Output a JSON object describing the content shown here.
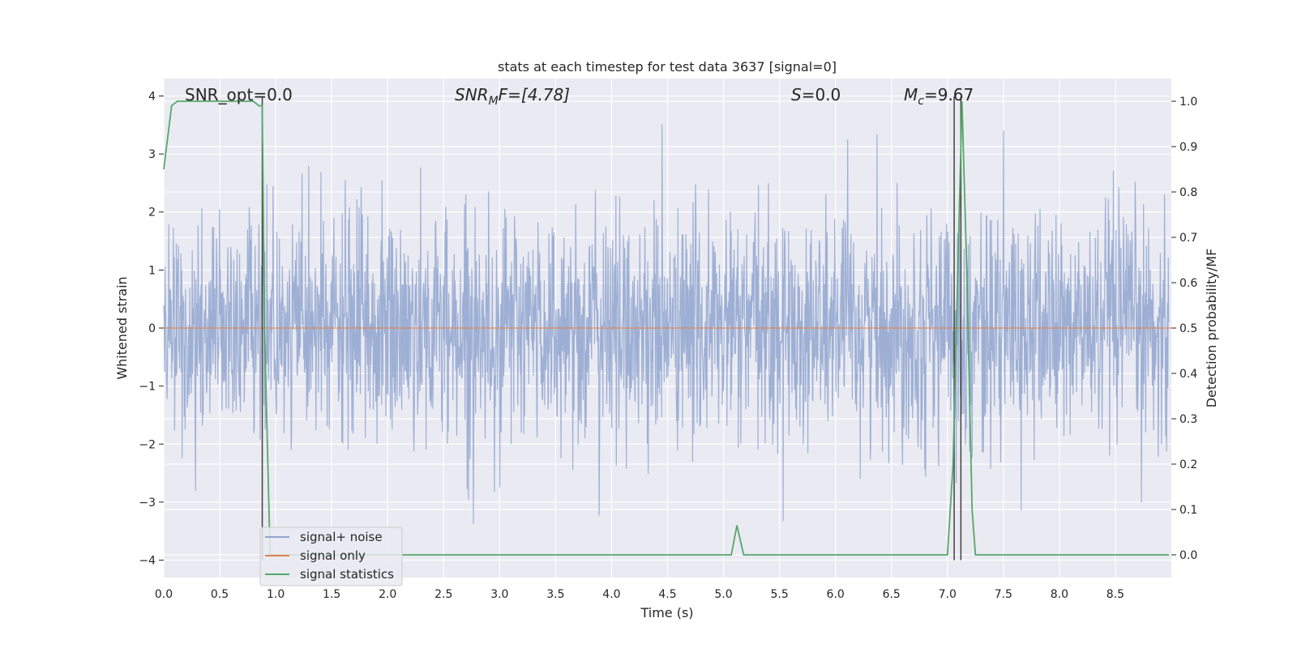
{
  "chart_data": {
    "type": "line",
    "title": "stats at each timestep for test data 3637 [signal=0]",
    "xlabel": "Time (s)",
    "ylabel": "Whitened strain",
    "ylabel_right": "Detection probability/MF",
    "xlim": [
      0.0,
      9.0
    ],
    "ylim": [
      -4.3,
      4.3
    ],
    "ylim_right": [
      -0.05,
      1.05
    ],
    "x_ticks": [
      0.0,
      0.5,
      1.0,
      1.5,
      2.0,
      2.5,
      3.0,
      3.5,
      4.0,
      4.5,
      5.0,
      5.5,
      6.0,
      6.5,
      7.0,
      7.5,
      8.0,
      8.5
    ],
    "x_tick_labels": [
      "0.0",
      "0.5",
      "1.0",
      "1.5",
      "2.0",
      "2.5",
      "3.0",
      "3.5",
      "4.0",
      "4.5",
      "5.0",
      "5.5",
      "6.0",
      "6.5",
      "7.0",
      "7.5",
      "8.0",
      "8.5"
    ],
    "y_ticks": [
      4,
      3,
      2,
      1,
      0,
      -1,
      -2,
      -3,
      -4
    ],
    "y_tick_labels": [
      "4",
      "3",
      "2",
      "1",
      "0",
      "−1",
      "−2",
      "−3",
      "−4"
    ],
    "y_right_ticks": [
      1.0,
      0.9,
      0.8,
      0.7,
      0.6,
      0.5,
      0.4,
      0.3,
      0.2,
      0.1,
      0.0
    ],
    "y_right_tick_labels": [
      "1.0",
      "0.9",
      "0.8",
      "0.7",
      "0.6",
      "0.5",
      "0.4",
      "0.3",
      "0.2",
      "0.1",
      "0.0"
    ],
    "grid": true,
    "legend_position": "lower-left",
    "annotations": {
      "snr_opt": "SNR_opt=0.0",
      "snr_mf_prefix": "SNR",
      "snr_mf_sub": "M",
      "snr_mf_suffix": "F=[4.78]",
      "s_prefix": "S",
      "s_suffix": "=0.0",
      "mc_prefix": "M",
      "mc_sub": "c",
      "mc_suffix": "=9.67"
    },
    "series": [
      {
        "name": "signal+ noise",
        "color": "#8fa5cf",
        "axis": "left",
        "kind": "whitened noise, approx. within ±2 with spikes to about ±3.9",
        "amplitude_sigma": 1.0
      },
      {
        "name": "signal only",
        "color": "#dd8452",
        "axis": "left",
        "kind": "flat",
        "value": 0.0
      },
      {
        "name": "signal statistics",
        "color": "#55a868",
        "axis": "right",
        "x": [
          0.0,
          0.07,
          0.12,
          0.2,
          0.4,
          0.6,
          0.8,
          0.85,
          0.88,
          0.9,
          0.95,
          1.0,
          1.5,
          2.0,
          3.0,
          4.0,
          4.5,
          5.0,
          5.07,
          5.12,
          5.18,
          5.25,
          6.0,
          6.5,
          7.0,
          7.05,
          7.1,
          7.13,
          7.17,
          7.22,
          7.25,
          7.5,
          8.0,
          8.5,
          8.98
        ],
        "values": [
          0.85,
          0.99,
          1.0,
          1.0,
          1.0,
          1.0,
          1.0,
          0.99,
          0.99,
          0.5,
          0.0,
          0.0,
          0.0,
          0.0,
          0.0,
          0.0,
          0.0,
          0.0,
          0.0,
          0.065,
          0.0,
          0.0,
          0.0,
          0.0,
          0.0,
          0.2,
          0.7,
          1.0,
          0.65,
          0.1,
          0.0,
          0.0,
          0.0,
          0.0,
          0.0
        ]
      }
    ],
    "vertical_markers": [
      {
        "x": 0.88,
        "axis_range": [
          -4.0,
          3.99
        ],
        "color": "#404040"
      },
      {
        "x": 7.06,
        "axis_range": [
          -4.0,
          3.99
        ],
        "color": "#404040"
      },
      {
        "x": 7.12,
        "axis_range": [
          -4.0,
          3.99
        ],
        "color": "#404040"
      }
    ]
  }
}
